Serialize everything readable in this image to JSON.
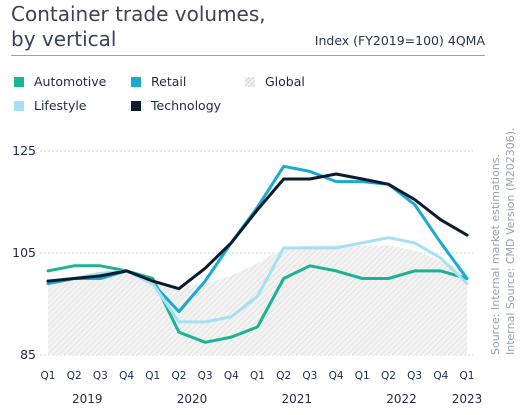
{
  "header": {
    "title_line1": "Container trade volumes,",
    "title_line2": "by vertical",
    "index_note": "Index (FY2019=100) 4QMA"
  },
  "source": {
    "line1": "Source: Internal market estimations.",
    "line2": "Internal Source: CMD Version (M202306)."
  },
  "colors": {
    "automotive": "#1ab394",
    "retail": "#1aaad0",
    "lifestyle": "#a6e0f2",
    "technology": "#0d1b2e",
    "global": "#e6e6e6"
  },
  "chart_data": {
    "type": "line",
    "title": "Container trade volumes, by vertical",
    "ylabel": "Index (FY2019=100) 4QMA",
    "xlabel": "",
    "ylim": [
      85,
      125
    ],
    "yticks": [
      85,
      105,
      125
    ],
    "categories": [
      "Q1",
      "Q2",
      "Q3",
      "Q4",
      "Q1",
      "Q2",
      "Q3",
      "Q4",
      "Q1",
      "Q2",
      "Q3",
      "Q4",
      "Q1",
      "Q2",
      "Q3",
      "Q4",
      "Q1"
    ],
    "year_labels": [
      {
        "label": "2019",
        "index": 1.5
      },
      {
        "label": "2020",
        "index": 5.5
      },
      {
        "label": "2021",
        "index": 9.5
      },
      {
        "label": "2022",
        "index": 13.5
      },
      {
        "label": "2023",
        "index": 16
      }
    ],
    "legend_position": "top-left",
    "series": [
      {
        "name": "Global",
        "kind": "area",
        "color_key": "global",
        "values": [
          99.5,
          100.0,
          101.0,
          101.5,
          99.5,
          98.5,
          99.0,
          100.5,
          103.0,
          106.0,
          106.5,
          106.5,
          106.5,
          106.5,
          105.5,
          103.5,
          101.5
        ]
      },
      {
        "name": "Automotive",
        "kind": "line",
        "color_key": "automotive",
        "values": [
          101.5,
          102.5,
          102.5,
          101.5,
          100.0,
          89.5,
          87.5,
          88.5,
          90.5,
          100.0,
          102.5,
          101.5,
          100.0,
          100.0,
          101.5,
          101.5,
          100.0
        ]
      },
      {
        "name": "Retail",
        "kind": "line",
        "color_key": "retail",
        "values": [
          99.0,
          100.0,
          100.0,
          101.5,
          99.0,
          93.5,
          99.5,
          107.0,
          114.0,
          122.0,
          121.0,
          119.0,
          119.0,
          118.5,
          114.5,
          107.0,
          100.0
        ]
      },
      {
        "name": "Lifestyle",
        "kind": "line",
        "color_key": "lifestyle",
        "values": [
          99.5,
          100.0,
          101.0,
          101.5,
          99.0,
          91.5,
          91.5,
          92.5,
          96.5,
          106.0,
          106.0,
          106.0,
          107.0,
          108.0,
          107.0,
          104.0,
          99.0
        ]
      },
      {
        "name": "Technology",
        "kind": "line",
        "color_key": "technology",
        "values": [
          99.5,
          100.0,
          100.5,
          101.5,
          99.5,
          98.0,
          102.0,
          107.0,
          113.5,
          119.5,
          119.5,
          120.5,
          119.5,
          118.5,
          115.5,
          111.5,
          108.5
        ]
      }
    ]
  }
}
